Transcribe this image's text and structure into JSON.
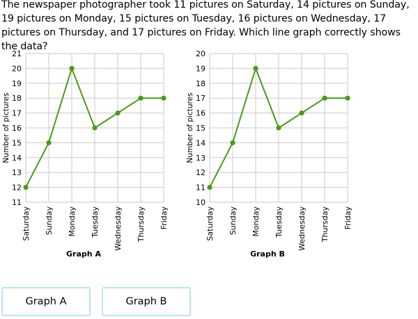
{
  "question": "The newspaper photographer took 11 pictures on Saturday, 14 pictures on Sunday, 19 pictures on Monday, 15 pictures on Tuesday, 16 pictures on Wednesday, 17 pictures on Thursday, and 17 pictures on Friday. Which line graph correctly shows the data?",
  "answers": [
    "Graph A",
    "Graph B"
  ],
  "colors": {
    "line": "#4a9a1a",
    "grid": "#c8c8c8",
    "answer_border": "#b9e4ef"
  },
  "chart_data": [
    {
      "type": "line",
      "title": "Graph A",
      "categories": [
        "Saturday",
        "Sunday",
        "Monday",
        "Tuesday",
        "Wednesday",
        "Thursday",
        "Friday"
      ],
      "values": [
        12,
        15,
        20,
        16,
        17,
        18,
        18
      ],
      "ylabel": "Number of pictures",
      "xlabel": "",
      "ylim": [
        11,
        21
      ],
      "yticks": [
        11,
        12,
        13,
        14,
        15,
        16,
        17,
        18,
        19,
        20,
        21
      ],
      "grid": true
    },
    {
      "type": "line",
      "title": "Graph B",
      "categories": [
        "Saturday",
        "Sunday",
        "Monday",
        "Tuesday",
        "Wednesday",
        "Thursday",
        "Friday"
      ],
      "values": [
        11,
        14,
        19,
        15,
        16,
        17,
        17
      ],
      "ylabel": "Number of pictures",
      "xlabel": "",
      "ylim": [
        10,
        20
      ],
      "yticks": [
        10,
        11,
        12,
        13,
        14,
        15,
        16,
        17,
        18,
        19,
        20
      ],
      "grid": true
    }
  ]
}
